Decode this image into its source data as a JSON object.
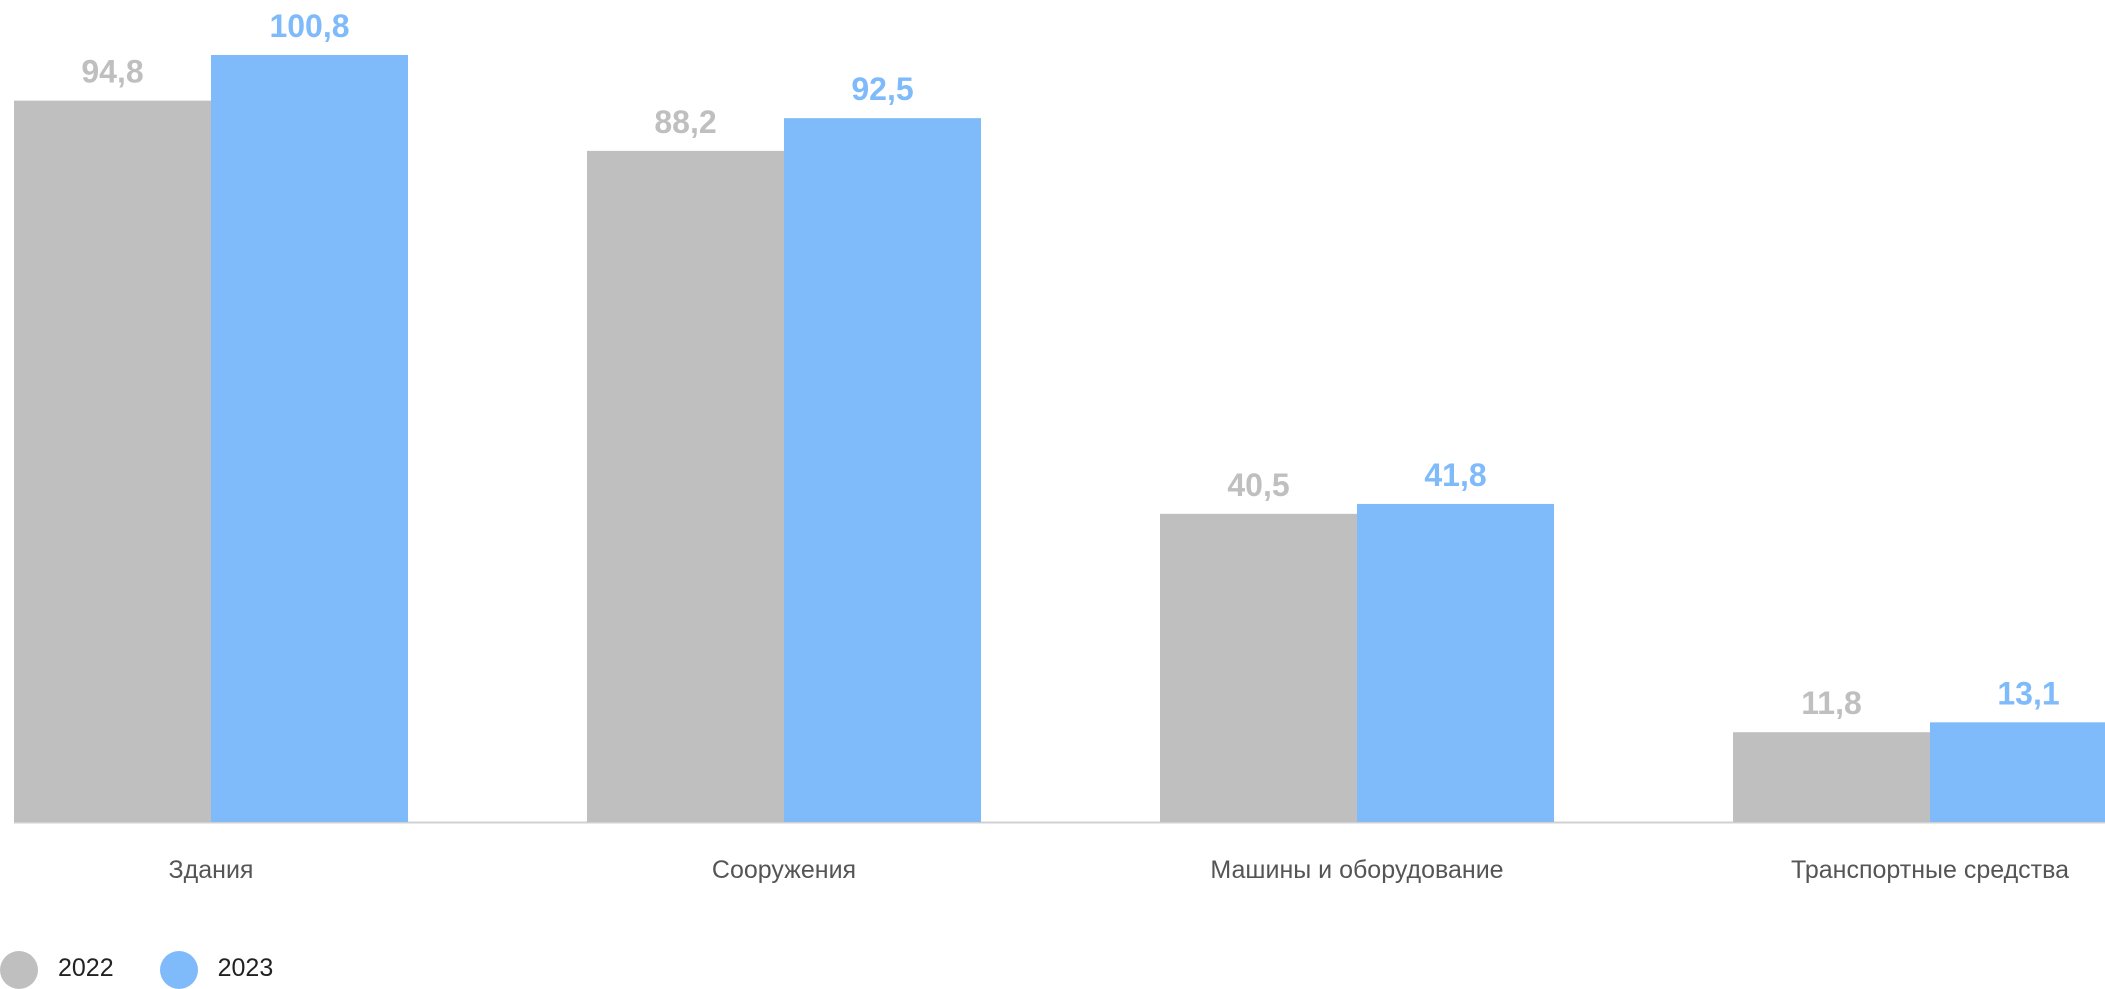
{
  "chart_data": {
    "type": "bar",
    "categories": [
      "Здания",
      "Сооружения",
      "Машины и оборудование",
      "Транспортные средства"
    ],
    "series": [
      {
        "name": "2022",
        "values": [
          94.8,
          88.2,
          40.5,
          11.8
        ],
        "labels": [
          "94,8",
          "88,2",
          "40,5",
          "11,8"
        ],
        "color": "#bfbfbf"
      },
      {
        "name": "2023",
        "values": [
          100.8,
          92.5,
          41.8,
          13.1
        ],
        "labels": [
          "100,8",
          "92,5",
          "41,8",
          "13,1"
        ],
        "color": "#7fbafa"
      }
    ],
    "ylim": [
      0,
      100.8
    ],
    "grid": false,
    "legend_position": "bottom-left",
    "axis_color": "#d0d0d0"
  }
}
